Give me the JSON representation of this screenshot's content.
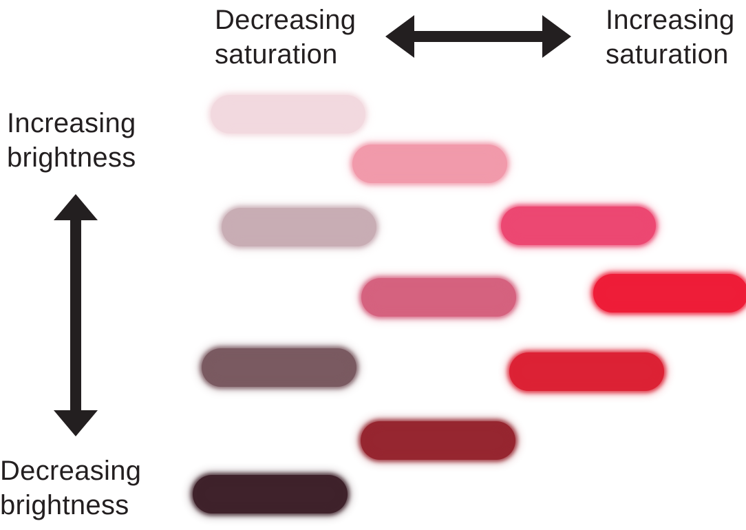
{
  "labels": {
    "decreasing_saturation": [
      "Decreasing",
      "saturation"
    ],
    "increasing_saturation": [
      "Increasing",
      "saturation"
    ],
    "increasing_brightness": [
      "Increasing",
      "brightness"
    ],
    "decreasing_brightness": [
      "Decreasing",
      "brightness"
    ]
  },
  "colors": {
    "text": "#231f20",
    "arrow": "#231f20",
    "swatches": {
      "pale-pink": "#f2d9df",
      "light-pink": "#f19aab",
      "light-grey-rose": "#c8adb4",
      "bright-pink": "#ec4872",
      "mid-rose": "#d5627f",
      "red": "#ee1d38",
      "taupe": "#7a5a61",
      "crimson": "#dc2235",
      "dark-red": "#962630",
      "very-dark-maroon": "#3f222b"
    }
  }
}
